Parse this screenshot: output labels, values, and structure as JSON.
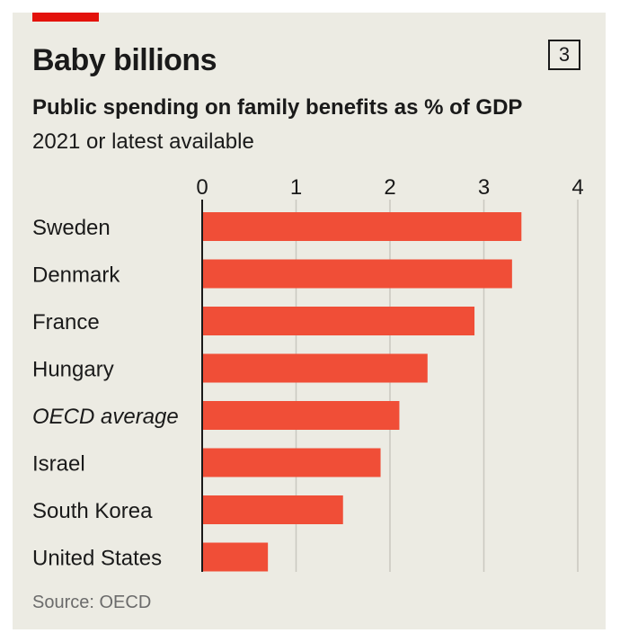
{
  "header": {
    "title": "Baby billions",
    "chart_number": "3",
    "subtitle": "Public spending on family benefits as % of GDP",
    "subtitle2": "2021 or latest available"
  },
  "footer": {
    "source": "Source: OECD"
  },
  "colors": {
    "bar": "#f04e37",
    "background": "#ecebe3",
    "brand_red": "#e3120b",
    "grid": "#c9c8c0"
  },
  "chart_data": {
    "type": "bar",
    "orientation": "horizontal",
    "categories": [
      "Sweden",
      "Denmark",
      "France",
      "Hungary",
      "OECD average",
      "Israel",
      "South Korea",
      "United States"
    ],
    "values": [
      3.4,
      3.3,
      2.9,
      2.4,
      2.1,
      1.9,
      1.5,
      0.7
    ],
    "xlim": [
      0,
      4
    ],
    "xticks": [
      "0",
      "1",
      "2",
      "3",
      "4"
    ],
    "grid": true,
    "italic_categories": [
      "OECD average"
    ]
  }
}
